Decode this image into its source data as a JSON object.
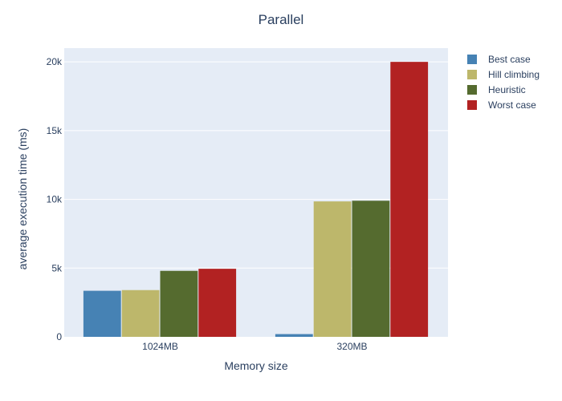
{
  "chart_data": {
    "type": "bar",
    "title": "Parallel",
    "xlabel": "Memory size",
    "ylabel": "average execution time (ms)",
    "categories": [
      "1024MB",
      "320MB"
    ],
    "ylim": [
      0,
      21000
    ],
    "yticks": [
      0,
      5000,
      10000,
      15000,
      20000
    ],
    "ytick_labels": [
      "0",
      "5k",
      "10k",
      "15k",
      "20k"
    ],
    "grid": true,
    "legend_position": "top-right",
    "series": [
      {
        "name": "Best case",
        "color": "#4682b4",
        "values": [
          3350,
          200
        ]
      },
      {
        "name": "Hill climbing",
        "color": "#bdb76b",
        "values": [
          3400,
          9850
        ]
      },
      {
        "name": "Heuristic",
        "color": "#556b2f",
        "values": [
          4800,
          9900
        ]
      },
      {
        "name": "Worst case",
        "color": "#b22222",
        "values": [
          4950,
          20000
        ]
      }
    ],
    "plot_bg": "#e5ecf6"
  }
}
